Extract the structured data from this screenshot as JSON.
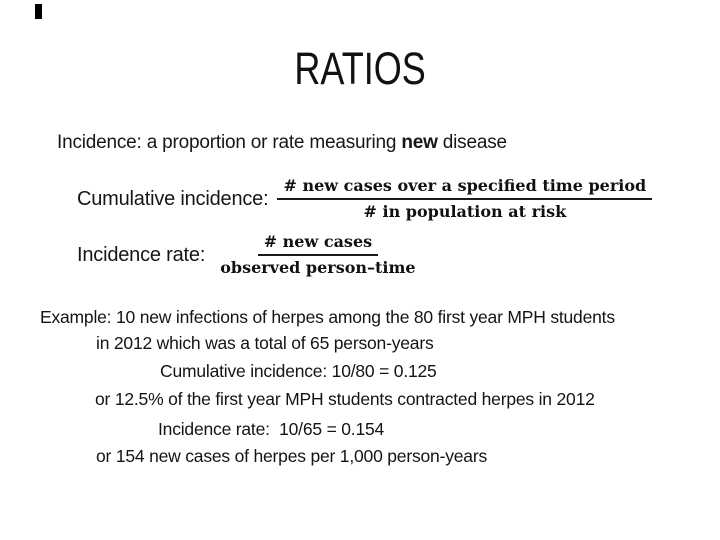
{
  "slide": {
    "title": "RATIOS",
    "definition": {
      "pre": "Incidence: a proportion or rate measuring ",
      "emph": "new",
      "post": " disease"
    },
    "formulas": [
      {
        "label": "Cumulative incidence:",
        "numerator": "# new cases over a specified time period",
        "denominator": "# in population at risk"
      },
      {
        "label": "Incidence rate:",
        "numerator": "# new cases",
        "denominator": "observed person–time"
      }
    ],
    "example": {
      "line1": "Example: 10 new infections of herpes among the 80 first year MPH students",
      "line2": "in 2012 which was a total of 65 person-years",
      "line3": "Cumulative incidence: 10/80 = 0.125",
      "line4": "or 12.5% of the first year MPH students contracted herpes in 2012",
      "line5": "Incidence rate:  10/65 = 0.154",
      "line6": "or 154 new cases of herpes per 1,000 person-years"
    }
  },
  "colors": {
    "background": "#ffffff",
    "text": "#161616",
    "fraction_bar": "#1a1a1a"
  }
}
